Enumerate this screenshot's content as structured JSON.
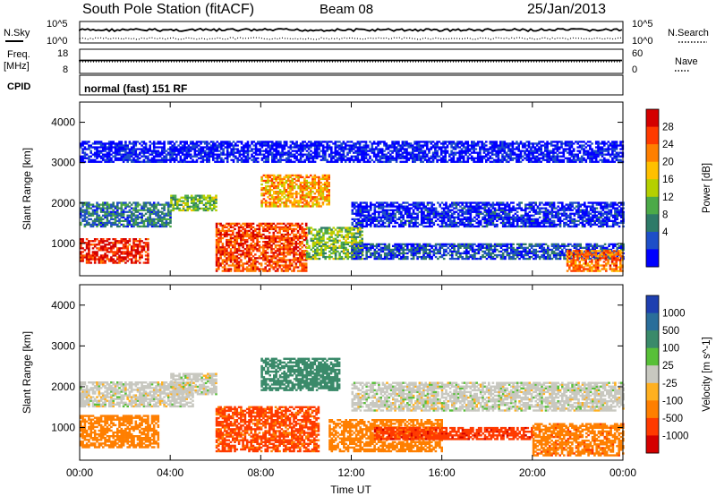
{
  "header": {
    "station": "South Pole Station (fitACF)",
    "beam": "Beam 08",
    "date": "25/Jan/2013"
  },
  "top_panels": {
    "nsky_label": "N.Sky",
    "nsky_ticks": [
      "10^5",
      "10^0"
    ],
    "nsearch_label": "N.Search",
    "nsearch_ticks": [
      "10^5",
      "10^0"
    ],
    "freq_label": "Freq.",
    "freq_unit": "[MHz]",
    "freq_ticks": [
      "18",
      "8"
    ],
    "nave_label": "Nave",
    "nave_ticks": [
      "60",
      "0"
    ],
    "cpid_label": "CPID",
    "cpid_text": "normal (fast) 151 RF"
  },
  "chart_data": [
    {
      "type": "heatmap",
      "panel": "power",
      "ylabel": "Slant Range [km]",
      "xlabel": "",
      "ylim": [
        200,
        4500
      ],
      "y_ticks": [
        "1000",
        "2000",
        "3000",
        "4000"
      ],
      "x_ticks": [
        "00:00",
        "04:00",
        "08:00",
        "12:00",
        "16:00",
        "20:00",
        "00:00"
      ],
      "colorbar": {
        "label": "Power [dB]",
        "ticks": [
          "28",
          "24",
          "20",
          "16",
          "12",
          "8",
          "4"
        ],
        "colors": [
          "#d40000",
          "#ff3a00",
          "#ff7f00",
          "#ffc000",
          "#b5d000",
          "#4caa48",
          "#2e7a68",
          "#1e4fc8",
          "#0000ff"
        ]
      },
      "bands": [
        {
          "t0": 0.0,
          "t1": 3.0,
          "r0": 500,
          "r1": 1100,
          "value": 26
        },
        {
          "t0": 0.0,
          "t1": 4.0,
          "r0": 1400,
          "r1": 2000,
          "value": 10
        },
        {
          "t0": 4.0,
          "t1": 6.0,
          "r0": 1800,
          "r1": 2200,
          "value": 14
        },
        {
          "t0": 6.0,
          "t1": 10.0,
          "r0": 300,
          "r1": 1500,
          "value": 24
        },
        {
          "t0": 8.0,
          "t1": 11.0,
          "r0": 1900,
          "r1": 2700,
          "value": 20
        },
        {
          "t0": 10.0,
          "t1": 12.5,
          "r0": 600,
          "r1": 1400,
          "value": 14
        },
        {
          "t0": 12.0,
          "t1": 24.0,
          "r0": 600,
          "r1": 1000,
          "value": 8
        },
        {
          "t0": 12.0,
          "t1": 24.0,
          "r0": 1400,
          "r1": 2000,
          "value": 6
        },
        {
          "t0": 21.5,
          "t1": 24.0,
          "r0": 300,
          "r1": 800,
          "value": 22
        },
        {
          "t0": 0.0,
          "t1": 24.0,
          "r0": 3000,
          "r1": 3500,
          "value": 5
        }
      ]
    },
    {
      "type": "heatmap",
      "panel": "velocity",
      "ylabel": "Slant Range [km]",
      "xlabel": "Time UT",
      "ylim": [
        200,
        4500
      ],
      "y_ticks": [
        "1000",
        "2000",
        "3000",
        "4000"
      ],
      "x_ticks": [
        "00:00",
        "04:00",
        "08:00",
        "12:00",
        "16:00",
        "20:00",
        "00:00"
      ],
      "colorbar": {
        "label": "Velocity [m s^-1]",
        "ticks": [
          "1000",
          "500",
          "100",
          "25",
          "-25",
          "-100",
          "-500",
          "-1000"
        ],
        "colors": [
          "#1e3fb0",
          "#2a6e9a",
          "#3a8a6a",
          "#58c038",
          "#c8c8c0",
          "#ffb020",
          "#ff7f00",
          "#ff3a00",
          "#d40000"
        ]
      },
      "bands": [
        {
          "t0": 0.0,
          "t1": 3.5,
          "r0": 500,
          "r1": 1300,
          "value": -150
        },
        {
          "t0": 0.0,
          "t1": 5.0,
          "r0": 1500,
          "r1": 2100,
          "value": 0
        },
        {
          "t0": 4.0,
          "t1": 6.0,
          "r0": 1800,
          "r1": 2300,
          "value": 0
        },
        {
          "t0": 6.0,
          "t1": 10.5,
          "r0": 400,
          "r1": 1500,
          "value": -600
        },
        {
          "t0": 8.0,
          "t1": 11.5,
          "r0": 1900,
          "r1": 2700,
          "value": 200
        },
        {
          "t0": 11.0,
          "t1": 16.0,
          "r0": 400,
          "r1": 1200,
          "value": -300
        },
        {
          "t0": 13.0,
          "t1": 20.0,
          "r0": 700,
          "r1": 1000,
          "value": -800
        },
        {
          "t0": 12.0,
          "t1": 24.0,
          "r0": 1400,
          "r1": 2100,
          "value": 0
        },
        {
          "t0": 20.0,
          "t1": 24.0,
          "r0": 300,
          "r1": 1100,
          "value": -400
        }
      ]
    }
  ]
}
